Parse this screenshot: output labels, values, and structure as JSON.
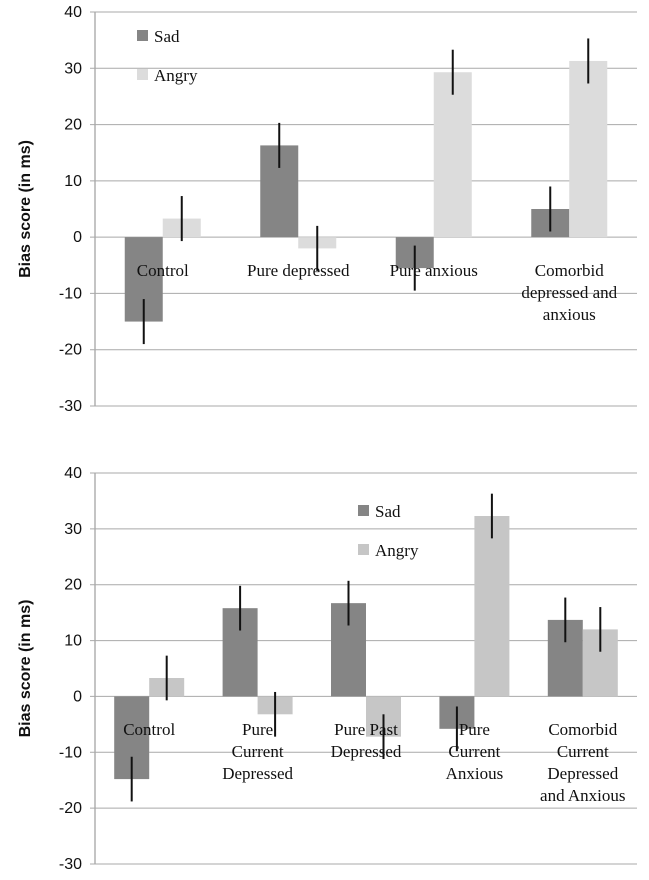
{
  "chart_data": [
    {
      "type": "bar",
      "ylabel": "Bias score (in ms)",
      "ylim": [
        -30,
        40
      ],
      "yticks": [
        40,
        30,
        20,
        10,
        0,
        -10,
        -20,
        -30
      ],
      "grid": true,
      "legend_position": "top-left",
      "categories": [
        [
          "Control"
        ],
        [
          "Pure depressed"
        ],
        [
          "Pure anxious"
        ],
        [
          "Comorbid",
          "depressed and",
          "anxious"
        ]
      ],
      "series": [
        {
          "name": "Sad",
          "color": "#858585",
          "values": [
            -15,
            16.3,
            -5.5,
            5
          ],
          "errors": [
            4,
            4,
            4,
            4
          ]
        },
        {
          "name": "Angry",
          "color": "#dcdcdc",
          "values": [
            3.3,
            -2,
            29.3,
            31.3
          ],
          "errors": [
            4,
            4,
            4,
            4
          ]
        }
      ]
    },
    {
      "type": "bar",
      "ylabel": "Bias score (in ms)",
      "ylim": [
        -30,
        40
      ],
      "yticks": [
        40,
        30,
        20,
        10,
        0,
        -10,
        -20,
        -30
      ],
      "grid": true,
      "legend_position": "top-center",
      "categories": [
        [
          "Control"
        ],
        [
          "Pure",
          "Current",
          "Depressed"
        ],
        [
          "Pure Past",
          "Depressed"
        ],
        [
          "Pure",
          "Current",
          "Anxious"
        ],
        [
          "Comorbid",
          "Current",
          "Depressed",
          "and Anxious"
        ]
      ],
      "series": [
        {
          "name": "Sad",
          "color": "#858585",
          "values": [
            -14.8,
            15.8,
            16.7,
            -5.8,
            13.7
          ],
          "errors": [
            4,
            4,
            4,
            4,
            4
          ]
        },
        {
          "name": "Angry",
          "color": "#c6c6c6",
          "values": [
            3.3,
            -3.2,
            -7.2,
            32.3,
            12
          ],
          "errors": [
            4,
            4,
            4,
            4,
            4
          ]
        }
      ]
    }
  ]
}
